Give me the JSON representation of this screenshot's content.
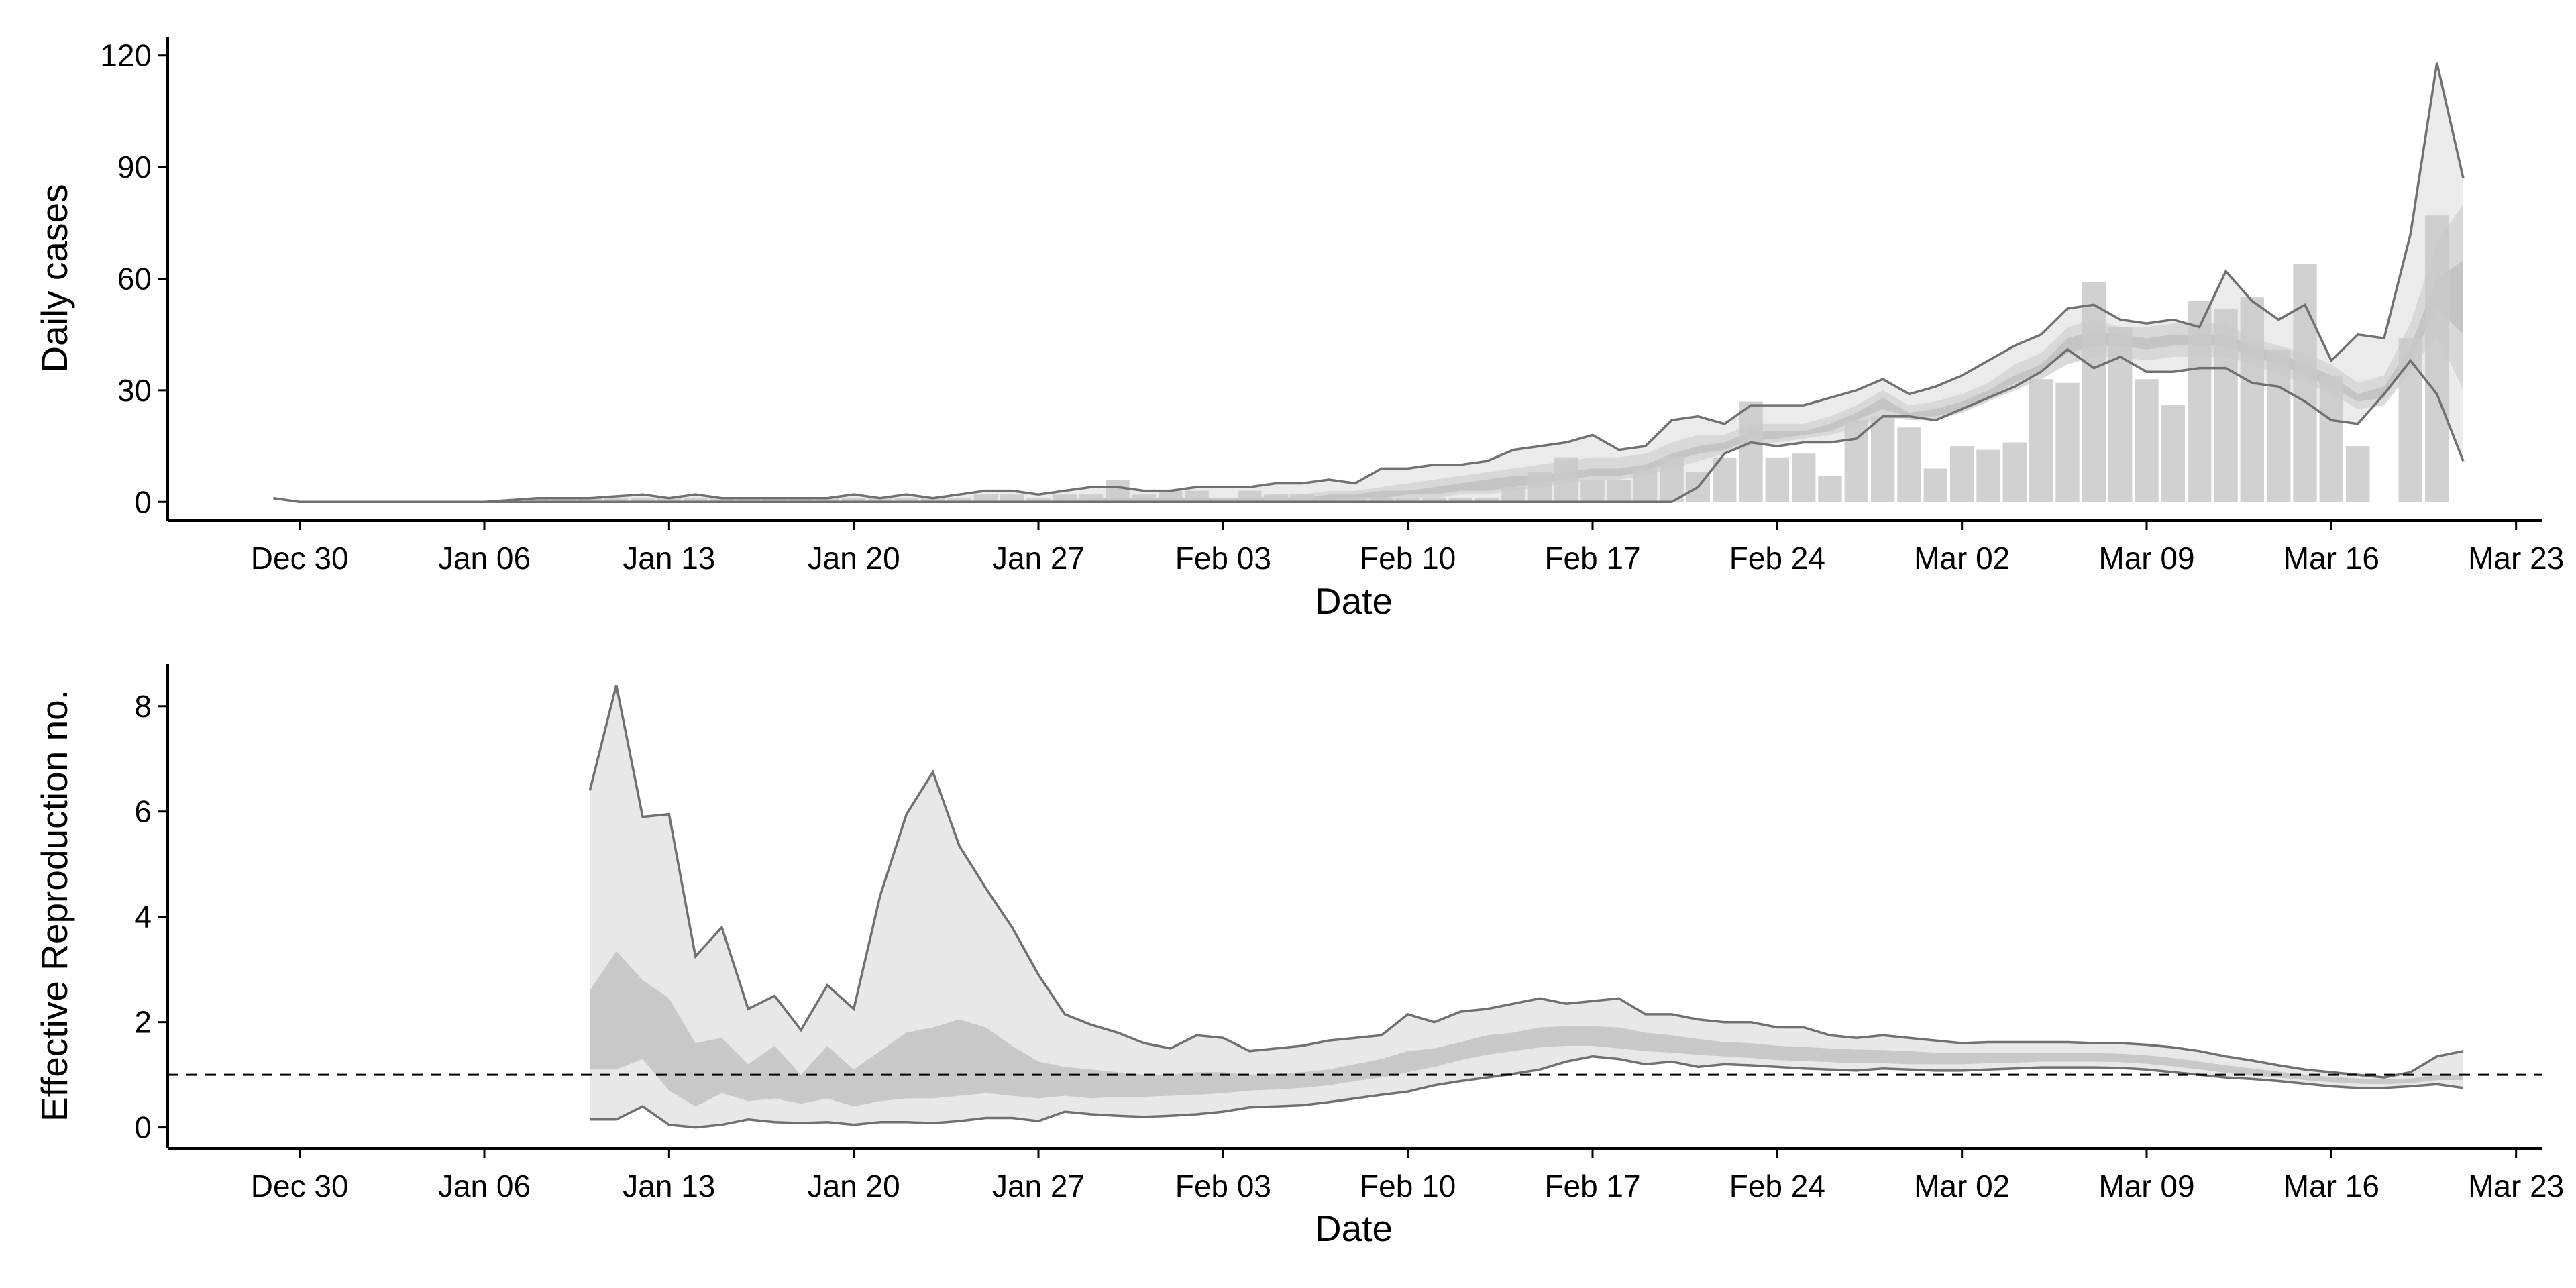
{
  "chart_data": [
    {
      "type": "bar",
      "ylabel": "Daily cases",
      "xlabel": "Date",
      "ylim": [
        -5,
        125
      ],
      "y_ticks": [
        0,
        30,
        60,
        90,
        120
      ],
      "y_tick_labels": [
        "0",
        "30",
        "60",
        "90",
        "120"
      ],
      "x_ticks": [
        "2019-12-30",
        "2020-01-06",
        "2020-01-13",
        "2020-01-20",
        "2020-01-27",
        "2020-02-03",
        "2020-02-10",
        "2020-02-17",
        "2020-02-24",
        "2020-03-02",
        "2020-03-09",
        "2020-03-16",
        "2020-03-23"
      ],
      "x_tick_labels": [
        "Dec 30",
        "Jan 06",
        "Jan 13",
        "Jan 20",
        "Jan 27",
        "Feb 03",
        "Feb 10",
        "Feb 17",
        "Feb 24",
        "Mar 02",
        "Mar 09",
        "Mar 16",
        "Mar 23"
      ],
      "xlim": [
        "2019-12-25",
        "2020-03-24"
      ],
      "grid": false,
      "colors": {
        "bar": "#c9c9c9",
        "band_outer": "#e8e8e8",
        "band_mid": "#d6d6d6",
        "band_inner": "#c2c2c2",
        "line": "#707070"
      },
      "bars": {
        "dates": [
          "2020-01-08",
          "2020-01-09",
          "2020-01-10",
          "2020-01-11",
          "2020-01-12",
          "2020-01-13",
          "2020-01-14",
          "2020-01-15",
          "2020-01-16",
          "2020-01-17",
          "2020-01-18",
          "2020-01-19",
          "2020-01-20",
          "2020-01-21",
          "2020-01-22",
          "2020-01-23",
          "2020-01-24",
          "2020-01-25",
          "2020-01-26",
          "2020-01-27",
          "2020-01-28",
          "2020-01-29",
          "2020-01-30",
          "2020-01-31",
          "2020-02-01",
          "2020-02-02",
          "2020-02-03",
          "2020-02-04",
          "2020-02-05",
          "2020-02-06",
          "2020-02-07",
          "2020-02-08",
          "2020-02-09",
          "2020-02-10",
          "2020-02-11",
          "2020-02-12",
          "2020-02-13",
          "2020-02-14",
          "2020-02-15",
          "2020-02-16",
          "2020-02-17",
          "2020-02-18",
          "2020-02-19",
          "2020-02-20",
          "2020-02-21",
          "2020-02-22",
          "2020-02-23",
          "2020-02-24",
          "2020-02-25",
          "2020-02-26",
          "2020-02-27",
          "2020-02-28",
          "2020-02-29",
          "2020-03-01",
          "2020-03-02",
          "2020-03-03",
          "2020-03-04",
          "2020-03-05",
          "2020-03-06",
          "2020-03-07",
          "2020-03-08",
          "2020-03-09",
          "2020-03-10",
          "2020-03-11",
          "2020-03-12",
          "2020-03-13",
          "2020-03-14",
          "2020-03-15",
          "2020-03-16",
          "2020-03-17",
          "2020-03-18",
          "2020-03-19",
          "2020-03-20"
        ],
        "values": [
          1,
          1,
          1,
          1,
          1,
          1,
          1,
          1,
          1,
          1,
          1,
          1,
          1,
          1,
          1,
          1,
          1,
          2,
          2,
          1,
          2,
          2,
          6,
          2,
          3,
          3,
          1,
          3,
          2,
          2,
          1,
          1,
          1,
          1,
          1,
          1,
          1,
          4,
          8,
          12,
          6,
          6,
          9,
          12,
          8,
          12,
          27,
          12,
          13,
          7,
          22,
          23,
          20,
          9,
          15,
          14,
          16,
          33,
          32,
          59,
          47,
          33,
          26,
          54,
          52,
          55,
          41,
          64,
          34,
          15,
          0,
          44,
          77
        ]
      },
      "projection": {
        "dates": [
          "2019-12-29",
          "2019-12-30",
          "2020-01-01",
          "2020-01-06",
          "2020-01-08",
          "2020-01-10",
          "2020-01-12",
          "2020-01-13",
          "2020-01-14",
          "2020-01-15",
          "2020-01-16",
          "2020-01-18",
          "2020-01-19",
          "2020-01-20",
          "2020-01-21",
          "2020-01-22",
          "2020-01-23",
          "2020-01-24",
          "2020-01-25",
          "2020-01-26",
          "2020-01-27",
          "2020-01-28",
          "2020-01-29",
          "2020-01-30",
          "2020-01-31",
          "2020-02-01",
          "2020-02-02",
          "2020-02-03",
          "2020-02-04",
          "2020-02-05",
          "2020-02-06",
          "2020-02-07",
          "2020-02-08",
          "2020-02-09",
          "2020-02-10",
          "2020-02-11",
          "2020-02-12",
          "2020-02-13",
          "2020-02-14",
          "2020-02-15",
          "2020-02-16",
          "2020-02-17",
          "2020-02-18",
          "2020-02-19",
          "2020-02-20",
          "2020-02-21",
          "2020-02-22",
          "2020-02-23",
          "2020-02-24",
          "2020-02-25",
          "2020-02-26",
          "2020-02-27",
          "2020-02-28",
          "2020-02-29",
          "2020-03-01",
          "2020-03-02",
          "2020-03-03",
          "2020-03-04",
          "2020-03-05",
          "2020-03-06",
          "2020-03-07",
          "2020-03-08",
          "2020-03-09",
          "2020-03-10",
          "2020-03-11",
          "2020-03-12",
          "2020-03-13",
          "2020-03-14",
          "2020-03-15",
          "2020-03-16",
          "2020-03-17",
          "2020-03-18",
          "2020-03-19",
          "2020-03-20",
          "2020-03-21"
        ],
        "upper": [
          1,
          0,
          0,
          0,
          1,
          1,
          2,
          1,
          2,
          1,
          1,
          1,
          1,
          2,
          1,
          2,
          1,
          2,
          3,
          3,
          2,
          3,
          4,
          4,
          3,
          3,
          4,
          4,
          4,
          5,
          5,
          6,
          5,
          9,
          9,
          10,
          10,
          11,
          14,
          15,
          16,
          18,
          14,
          15,
          22,
          23,
          21,
          26,
          26,
          26,
          28,
          30,
          33,
          29,
          31,
          34,
          38,
          42,
          45,
          52,
          53,
          49,
          48,
          49,
          47,
          62,
          54,
          49,
          53,
          38,
          45,
          44,
          72,
          118,
          87
        ],
        "lower": [
          1,
          0,
          0,
          0,
          0,
          0,
          0,
          0,
          0,
          0,
          0,
          0,
          0,
          0,
          0,
          0,
          0,
          0,
          0,
          0,
          0,
          0,
          0,
          0,
          0,
          0,
          0,
          0,
          0,
          0,
          0,
          0,
          0,
          0,
          0,
          0,
          0,
          0,
          0,
          0,
          0,
          0,
          0,
          0,
          0,
          4,
          13,
          16,
          15,
          16,
          16,
          17,
          23,
          23,
          22,
          25,
          28,
          31,
          35,
          41,
          36,
          39,
          35,
          35,
          36,
          36,
          32,
          31,
          27,
          22,
          21,
          29,
          38,
          29,
          11
        ],
        "mid_upper": [
          0,
          0,
          0,
          0,
          0,
          0,
          0,
          0,
          0,
          0,
          0,
          0,
          0,
          0,
          0,
          0,
          0,
          0,
          0,
          0,
          0,
          1,
          1,
          1,
          1,
          1,
          1,
          1,
          1,
          2,
          2,
          3,
          3,
          4,
          5,
          6,
          7,
          8,
          9,
          10,
          11,
          12,
          12,
          13,
          16,
          18,
          18,
          21,
          21,
          21,
          23,
          26,
          30,
          26,
          27,
          29,
          32,
          37,
          40,
          47,
          49,
          47,
          47,
          48,
          48,
          48,
          44,
          42,
          40,
          37,
          32,
          34,
          48,
          70,
          80
        ],
        "mid_lower": [
          0,
          0,
          0,
          0,
          0,
          0,
          0,
          0,
          0,
          0,
          0,
          0,
          0,
          0,
          0,
          0,
          0,
          0,
          0,
          0,
          0,
          0,
          0,
          0,
          0,
          0,
          0,
          0,
          0,
          0,
          0,
          0,
          0,
          0,
          1,
          1,
          2,
          2,
          3,
          4,
          5,
          6,
          6,
          7,
          9,
          11,
          13,
          15,
          16,
          17,
          18,
          20,
          23,
          22,
          22,
          24,
          27,
          30,
          33,
          37,
          39,
          39,
          38,
          39,
          39,
          39,
          37,
          34,
          32,
          29,
          25,
          26,
          35,
          45,
          30
        ],
        "inner_upper": [
          0,
          0,
          0,
          0,
          0,
          0,
          0,
          0,
          0,
          0,
          0,
          0,
          0,
          0,
          0,
          0,
          0,
          0,
          0,
          0,
          0,
          0,
          1,
          1,
          1,
          1,
          1,
          1,
          1,
          1,
          1,
          2,
          2,
          3,
          3,
          4,
          5,
          6,
          7,
          7,
          8,
          9,
          9,
          10,
          13,
          15,
          16,
          19,
          19,
          19,
          21,
          24,
          28,
          24,
          25,
          27,
          30,
          34,
          37,
          44,
          46,
          45,
          44,
          45,
          45,
          45,
          42,
          40,
          37,
          34,
          29,
          31,
          42,
          60,
          65
        ],
        "inner_lower": [
          0,
          0,
          0,
          0,
          0,
          0,
          0,
          0,
          0,
          0,
          0,
          0,
          0,
          0,
          0,
          0,
          0,
          0,
          0,
          0,
          0,
          0,
          0,
          0,
          0,
          0,
          0,
          0,
          0,
          0,
          0,
          0,
          1,
          1,
          2,
          2,
          3,
          3,
          4,
          5,
          6,
          7,
          7,
          8,
          11,
          13,
          14,
          17,
          17,
          18,
          19,
          22,
          25,
          23,
          23,
          25,
          28,
          32,
          35,
          40,
          42,
          42,
          41,
          42,
          42,
          42,
          39,
          37,
          34,
          31,
          27,
          28,
          38,
          52,
          45
        ]
      }
    },
    {
      "type": "area",
      "ylabel": "Effective Reproduction no.",
      "xlabel": "Date",
      "ylim": [
        -0.4,
        8.8
      ],
      "y_ticks": [
        0,
        2,
        4,
        6,
        8
      ],
      "y_tick_labels": [
        "0",
        "2",
        "4",
        "6",
        "8"
      ],
      "x_ticks": [
        "2019-12-30",
        "2020-01-06",
        "2020-01-13",
        "2020-01-20",
        "2020-01-27",
        "2020-02-03",
        "2020-02-10",
        "2020-02-17",
        "2020-02-24",
        "2020-03-02",
        "2020-03-09",
        "2020-03-16",
        "2020-03-23"
      ],
      "x_tick_labels": [
        "Dec 30",
        "Jan 06",
        "Jan 13",
        "Jan 20",
        "Jan 27",
        "Feb 03",
        "Feb 10",
        "Feb 17",
        "Feb 24",
        "Mar 02",
        "Mar 09",
        "Mar 16",
        "Mar 23"
      ],
      "xlim": [
        "2019-12-25",
        "2020-03-24"
      ],
      "reference_line": 1,
      "grid": false,
      "colors": {
        "band_outer": "#e8e8e8",
        "band_inner": "#c8c8c8",
        "line": "#707070",
        "reference": "#000000"
      },
      "dates": [
        "2020-01-10",
        "2020-01-11",
        "2020-01-12",
        "2020-01-13",
        "2020-01-14",
        "2020-01-15",
        "2020-01-16",
        "2020-01-17",
        "2020-01-18",
        "2020-01-19",
        "2020-01-20",
        "2020-01-21",
        "2020-01-22",
        "2020-01-23",
        "2020-01-24",
        "2020-01-25",
        "2020-01-26",
        "2020-01-27",
        "2020-01-28",
        "2020-01-29",
        "2020-01-30",
        "2020-01-31",
        "2020-02-01",
        "2020-02-02",
        "2020-02-03",
        "2020-02-04",
        "2020-02-05",
        "2020-02-06",
        "2020-02-07",
        "2020-02-08",
        "2020-02-09",
        "2020-02-10",
        "2020-02-11",
        "2020-02-12",
        "2020-02-13",
        "2020-02-14",
        "2020-02-15",
        "2020-02-16",
        "2020-02-17",
        "2020-02-18",
        "2020-02-19",
        "2020-02-20",
        "2020-02-21",
        "2020-02-22",
        "2020-02-23",
        "2020-02-24",
        "2020-02-25",
        "2020-02-26",
        "2020-02-27",
        "2020-02-28",
        "2020-02-29",
        "2020-03-01",
        "2020-03-02",
        "2020-03-03",
        "2020-03-04",
        "2020-03-05",
        "2020-03-06",
        "2020-03-07",
        "2020-03-08",
        "2020-03-09",
        "2020-03-10",
        "2020-03-11",
        "2020-03-12",
        "2020-03-13",
        "2020-03-14",
        "2020-03-15",
        "2020-03-16",
        "2020-03-17",
        "2020-03-18",
        "2020-03-19",
        "2020-03-20",
        "2020-03-21"
      ],
      "upper": [
        6.4,
        8.4,
        5.9,
        5.95,
        3.25,
        3.8,
        2.25,
        2.5,
        1.85,
        2.7,
        2.25,
        4.4,
        5.95,
        6.75,
        5.35,
        4.55,
        3.8,
        2.9,
        2.15,
        1.95,
        1.8,
        1.6,
        1.5,
        1.75,
        1.7,
        1.45,
        1.5,
        1.55,
        1.65,
        1.7,
        1.75,
        2.15,
        2.0,
        2.2,
        2.25,
        2.35,
        2.45,
        2.35,
        2.4,
        2.45,
        2.15,
        2.15,
        2.05,
        2.0,
        2.0,
        1.9,
        1.9,
        1.75,
        1.7,
        1.75,
        1.7,
        1.65,
        1.6,
        1.62,
        1.62,
        1.62,
        1.62,
        1.6,
        1.6,
        1.57,
        1.52,
        1.45,
        1.35,
        1.27,
        1.18,
        1.1,
        1.05,
        1.0,
        0.95,
        1.05,
        1.35,
        1.45
      ],
      "lower": [
        0.15,
        0.15,
        0.4,
        0.05,
        0.0,
        0.05,
        0.15,
        0.1,
        0.08,
        0.1,
        0.05,
        0.1,
        0.1,
        0.08,
        0.12,
        0.18,
        0.18,
        0.12,
        0.3,
        0.25,
        0.22,
        0.2,
        0.22,
        0.25,
        0.3,
        0.38,
        0.4,
        0.42,
        0.48,
        0.55,
        0.62,
        0.68,
        0.8,
        0.88,
        0.95,
        1.02,
        1.1,
        1.25,
        1.35,
        1.3,
        1.2,
        1.25,
        1.15,
        1.2,
        1.18,
        1.15,
        1.12,
        1.1,
        1.08,
        1.12,
        1.1,
        1.08,
        1.08,
        1.1,
        1.12,
        1.14,
        1.14,
        1.14,
        1.13,
        1.1,
        1.05,
        1.0,
        0.95,
        0.92,
        0.88,
        0.83,
        0.78,
        0.75,
        0.75,
        0.78,
        0.82,
        0.75
      ],
      "inner_upper": [
        2.6,
        3.35,
        2.8,
        2.45,
        1.6,
        1.7,
        1.2,
        1.55,
        1.0,
        1.55,
        1.1,
        1.45,
        1.8,
        1.9,
        2.05,
        1.9,
        1.55,
        1.25,
        1.15,
        1.1,
        1.05,
        1.0,
        1.0,
        1.05,
        1.05,
        1.0,
        1.02,
        1.05,
        1.1,
        1.2,
        1.3,
        1.45,
        1.5,
        1.62,
        1.75,
        1.8,
        1.9,
        1.92,
        1.92,
        1.9,
        1.8,
        1.75,
        1.68,
        1.62,
        1.6,
        1.55,
        1.53,
        1.5,
        1.48,
        1.47,
        1.45,
        1.42,
        1.42,
        1.42,
        1.42,
        1.42,
        1.42,
        1.42,
        1.4,
        1.37,
        1.32,
        1.25,
        1.18,
        1.12,
        1.06,
        1.0,
        0.96,
        0.93,
        0.92,
        0.93,
        1.0,
        1.0
      ],
      "inner_lower": [
        1.1,
        1.1,
        1.3,
        0.7,
        0.4,
        0.65,
        0.5,
        0.55,
        0.45,
        0.55,
        0.4,
        0.5,
        0.55,
        0.55,
        0.6,
        0.65,
        0.6,
        0.55,
        0.6,
        0.55,
        0.58,
        0.58,
        0.6,
        0.62,
        0.65,
        0.7,
        0.72,
        0.75,
        0.8,
        0.88,
        0.95,
        1.05,
        1.15,
        1.28,
        1.38,
        1.45,
        1.52,
        1.55,
        1.55,
        1.5,
        1.45,
        1.42,
        1.38,
        1.35,
        1.32,
        1.28,
        1.26,
        1.24,
        1.22,
        1.22,
        1.2,
        1.2,
        1.2,
        1.22,
        1.23,
        1.25,
        1.25,
        1.25,
        1.24,
        1.21,
        1.16,
        1.1,
        1.04,
        0.99,
        0.95,
        0.9,
        0.86,
        0.83,
        0.82,
        0.84,
        0.9,
        0.9
      ]
    }
  ]
}
